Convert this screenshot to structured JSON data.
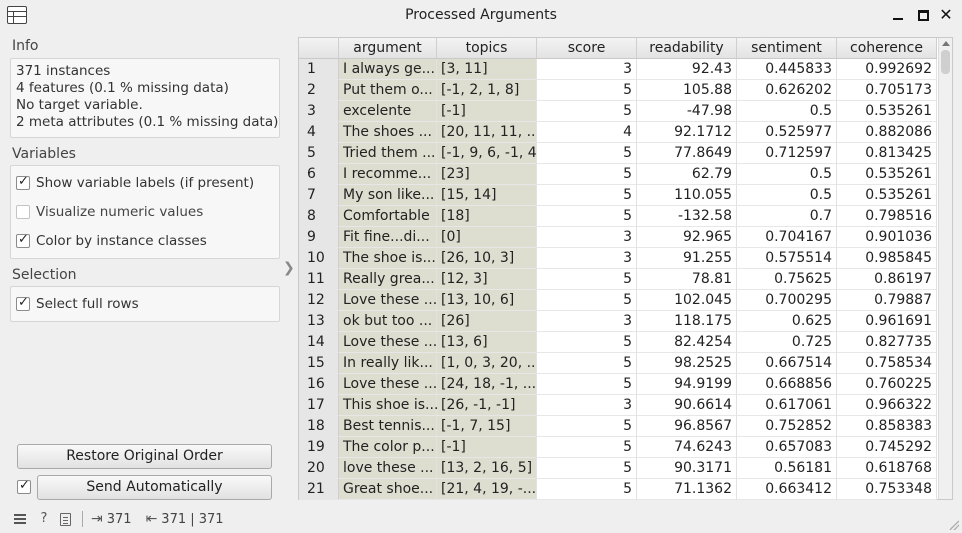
{
  "window": {
    "title": "Processed Arguments"
  },
  "info": {
    "label": "Info",
    "lines": [
      "371 instances",
      "4  features (0.1 % missing data)",
      "No target variable.",
      "2 meta attributes (0.1 % missing data)"
    ]
  },
  "variables": {
    "label": "Variables",
    "options": [
      {
        "label": "Show variable labels (if present)",
        "checked": true
      },
      {
        "label": "Visualize numeric values",
        "checked": false
      },
      {
        "label": "Color by instance classes",
        "checked": true
      }
    ]
  },
  "selection": {
    "label": "Selection",
    "options": [
      {
        "label": "Select full rows",
        "checked": true
      }
    ]
  },
  "buttons": {
    "restore": "Restore Original Order",
    "send": "Send Automatically",
    "send_checked": true
  },
  "status": {
    "input_count": "371",
    "output_count": "371 | 371"
  },
  "table": {
    "columns": [
      "argument",
      "topics",
      "score",
      "readability",
      "sentiment",
      "coherence"
    ],
    "rows": [
      [
        "1",
        "I always ge...",
        "[3, 11]",
        "3",
        "92.43",
        "0.445833",
        "0.992692"
      ],
      [
        "2",
        "Put them o...",
        "[-1, 2, 1, 8]",
        "5",
        "105.88",
        "0.626202",
        "0.705173"
      ],
      [
        "3",
        "excelente",
        "[-1]",
        "5",
        "-47.98",
        "0.5",
        "0.535261"
      ],
      [
        "4",
        "The shoes ...",
        "[20, 11, 11, ...",
        "4",
        "92.1712",
        "0.525977",
        "0.882086"
      ],
      [
        "5",
        "Tried them ...",
        "[-1, 9, 6, -1, 4]",
        "5",
        "77.8649",
        "0.712597",
        "0.813425"
      ],
      [
        "6",
        "I recomme...",
        "[23]",
        "5",
        "62.79",
        "0.5",
        "0.535261"
      ],
      [
        "7",
        "My son like...",
        "[15, 14]",
        "5",
        "110.055",
        "0.5",
        "0.535261"
      ],
      [
        "8",
        "Comfortable",
        "[18]",
        "5",
        "-132.58",
        "0.7",
        "0.798516"
      ],
      [
        "9",
        "Fit fine...di...",
        "[0]",
        "3",
        "92.965",
        "0.704167",
        "0.901036"
      ],
      [
        "10",
        "The shoe is...",
        "[26, 10, 3]",
        "3",
        "91.255",
        "0.575514",
        "0.985845"
      ],
      [
        "11",
        "Really grea...",
        "[12, 3]",
        "5",
        "78.81",
        "0.75625",
        "0.86197"
      ],
      [
        "12",
        "Love these ...",
        "[13, 10, 6]",
        "5",
        "102.045",
        "0.700295",
        "0.79887"
      ],
      [
        "13",
        "ok but too ...",
        "[26]",
        "3",
        "118.175",
        "0.625",
        "0.961691"
      ],
      [
        "14",
        "Love these ...",
        "[13, 6]",
        "5",
        "82.4254",
        "0.725",
        "0.827735"
      ],
      [
        "15",
        "In really lik...",
        "[1, 0, 3, 20, ...",
        "5",
        "98.2525",
        "0.667514",
        "0.758534"
      ],
      [
        "16",
        "Love these ...",
        "[24, 18, -1, ...",
        "5",
        "94.9199",
        "0.668856",
        "0.760225"
      ],
      [
        "17",
        "This shoe is...",
        "[26, -1, -1]",
        "3",
        "90.6614",
        "0.617061",
        "0.966322"
      ],
      [
        "18",
        "Best tennis...",
        "[-1, 7, 15]",
        "5",
        "96.8567",
        "0.752852",
        "0.858383"
      ],
      [
        "19",
        "The color p...",
        "[-1]",
        "5",
        "74.6243",
        "0.657083",
        "0.745292"
      ],
      [
        "20",
        "love these ...",
        "[13, 2, 16, 5]",
        "5",
        "90.3171",
        "0.56181",
        "0.618768"
      ],
      [
        "21",
        "Great shoe...",
        "[21, 4, 19, -...",
        "5",
        "71.1362",
        "0.663412",
        "0.753348"
      ]
    ]
  }
}
